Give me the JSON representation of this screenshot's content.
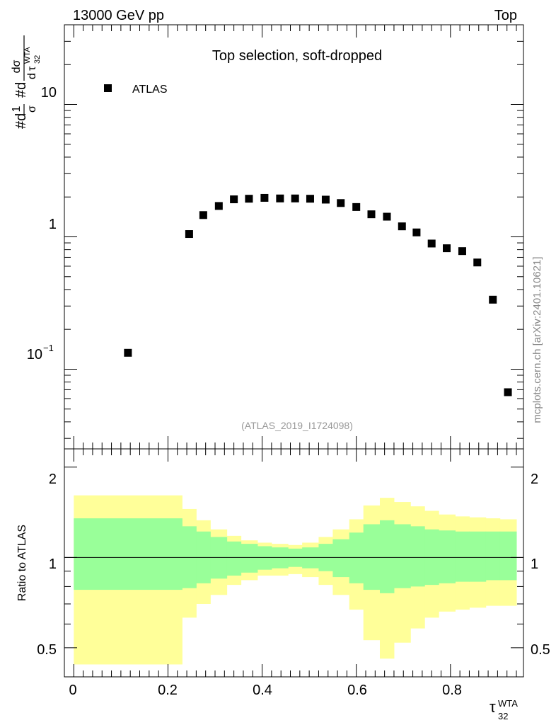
{
  "header": {
    "left": "13000 GeV pp",
    "right": "Top",
    "side_label": "mcplots.cern.ch [arXiv:2401.10621]"
  },
  "main_panel": {
    "title": "Top selection, soft-dropped",
    "watermark": "(ATLAS_2019_I1724098)",
    "legend_label": "ATLAS",
    "ylabel": "#d1/σ #d dσ/d τ32 WTA",
    "ylabel_parts": {
      "hash1": "#d",
      "one": "1",
      "sigma": "σ",
      "hash2": "#d",
      "dsigma": "dσ",
      "d": "d",
      "tau": "τ",
      "sup": "WTA",
      "sub": "32"
    },
    "ytick_labels": {
      "ten": "10",
      "one": "1",
      "tenth_base": "10",
      "tenth_exp": "−1"
    }
  },
  "ratio_panel": {
    "ylabel": "Ratio to ATLAS",
    "ytick_labels": [
      "2",
      "1",
      "0.5"
    ]
  },
  "xaxis": {
    "tick_labels": [
      "0",
      "0.2",
      "0.4",
      "0.6",
      "0.8"
    ],
    "label_tau": "τ",
    "label_sup": "WTA",
    "label_sub": "32"
  },
  "chart_data": {
    "type": "scatter",
    "title": "Top selection, soft-dropped",
    "xlabel": "τ32 WTA",
    "ylabel": "1/σ dσ/dτ32 WTA",
    "xlim": [
      -0.02,
      0.955
    ],
    "ylim": [
      0.025,
      40
    ],
    "yscale": "log",
    "series": [
      {
        "name": "ATLAS",
        "x": [
          0.115,
          0.245,
          0.275,
          0.308,
          0.34,
          0.372,
          0.405,
          0.438,
          0.47,
          0.502,
          0.535,
          0.567,
          0.6,
          0.632,
          0.665,
          0.697,
          0.728,
          0.76,
          0.792,
          0.825,
          0.857,
          0.89,
          0.922
        ],
        "y": [
          0.133,
          1.05,
          1.46,
          1.71,
          1.92,
          1.94,
          1.97,
          1.95,
          1.95,
          1.94,
          1.91,
          1.8,
          1.68,
          1.48,
          1.42,
          1.2,
          1.08,
          0.89,
          0.82,
          0.78,
          0.64,
          0.335,
          0.067
        ]
      }
    ],
    "ratio_panel": {
      "ylabel": "Ratio to ATLAS",
      "ylim": [
        0.4,
        2.3
      ],
      "yscale": "log",
      "reference": 1.0,
      "bin_edges": [
        0.0,
        0.23,
        0.26,
        0.29,
        0.325,
        0.355,
        0.39,
        0.42,
        0.455,
        0.485,
        0.52,
        0.55,
        0.585,
        0.615,
        0.65,
        0.68,
        0.715,
        0.745,
        0.775,
        0.81,
        0.84,
        0.875,
        0.905,
        0.94
      ],
      "band_inner_upper": [
        1.35,
        1.27,
        1.22,
        1.17,
        1.13,
        1.11,
        1.09,
        1.08,
        1.07,
        1.08,
        1.11,
        1.15,
        1.21,
        1.29,
        1.33,
        1.29,
        1.27,
        1.24,
        1.23,
        1.22,
        1.22,
        1.22,
        1.22
      ],
      "band_inner_lower": [
        0.78,
        0.79,
        0.82,
        0.85,
        0.87,
        0.89,
        0.91,
        0.92,
        0.93,
        0.92,
        0.9,
        0.86,
        0.82,
        0.78,
        0.76,
        0.79,
        0.8,
        0.81,
        0.82,
        0.83,
        0.83,
        0.84,
        0.84
      ],
      "band_outer_upper": [
        1.61,
        1.45,
        1.33,
        1.24,
        1.18,
        1.14,
        1.12,
        1.11,
        1.1,
        1.12,
        1.17,
        1.24,
        1.34,
        1.49,
        1.58,
        1.53,
        1.48,
        1.43,
        1.39,
        1.37,
        1.36,
        1.35,
        1.34
      ],
      "band_outer_lower": [
        0.44,
        0.63,
        0.7,
        0.75,
        0.81,
        0.84,
        0.87,
        0.87,
        0.88,
        0.86,
        0.81,
        0.75,
        0.67,
        0.53,
        0.46,
        0.52,
        0.58,
        0.63,
        0.66,
        0.67,
        0.68,
        0.69,
        0.69
      ],
      "band_colors": {
        "outer": "#ffff99",
        "inner": "#99ff99"
      }
    }
  }
}
